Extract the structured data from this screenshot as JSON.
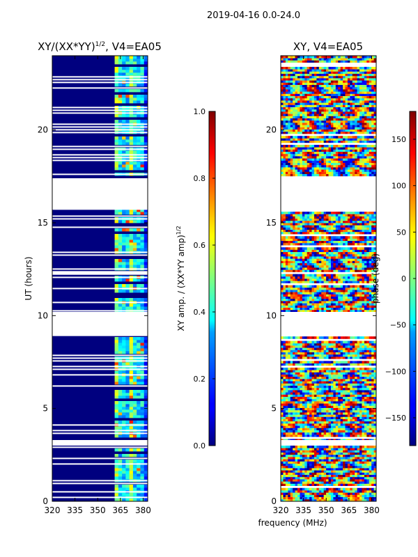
{
  "suptitle": "2019-04-16 0.0-24.0",
  "xlabel_shared": "frequency (MHz)",
  "chart_data": [
    {
      "type": "heatmap",
      "title_base": "XY/(XX*YY)",
      "title_exp": "1/2",
      "title_rest": ", V4=EA05",
      "xlabel": "frequency (MHz)",
      "ylabel": "UT (hours)",
      "xlim": [
        320,
        383
      ],
      "ylim": [
        0,
        24
      ],
      "xticks": [
        320,
        335,
        350,
        365,
        380
      ],
      "yticks": [
        0,
        5,
        10,
        15,
        20
      ],
      "gaps_hours": [
        [
          3.0,
          3.3
        ],
        [
          8.9,
          10.2
        ],
        [
          12.2,
          12.4
        ],
        [
          15.7,
          17.4
        ]
      ],
      "colorbar": {
        "label_base": "XY amp. / (XX*YY amp)",
        "label_exp": "1/2",
        "range": [
          0.0,
          1.0
        ],
        "ticks": [
          "0.0",
          "0.2",
          "0.4",
          "0.6",
          "0.8",
          "1.0"
        ],
        "colormap": "jet"
      }
    },
    {
      "type": "heatmap",
      "title": "XY, V4=EA05",
      "xlabel": "frequency (MHz)",
      "ylabel": "",
      "xlim": [
        320,
        383
      ],
      "ylim": [
        0,
        24
      ],
      "xticks": [
        320,
        335,
        350,
        365,
        380
      ],
      "yticks": [
        0,
        5,
        10,
        15,
        20
      ],
      "gaps_hours": [
        [
          3.0,
          3.3
        ],
        [
          8.9,
          10.2
        ],
        [
          15.7,
          17.4
        ]
      ],
      "colorbar": {
        "label": "phase (deg)",
        "range": [
          -180,
          180
        ],
        "ticks": [
          "−150",
          "−100",
          "−50",
          "0",
          "50",
          "100",
          "150"
        ],
        "colormap": "jet"
      }
    }
  ]
}
